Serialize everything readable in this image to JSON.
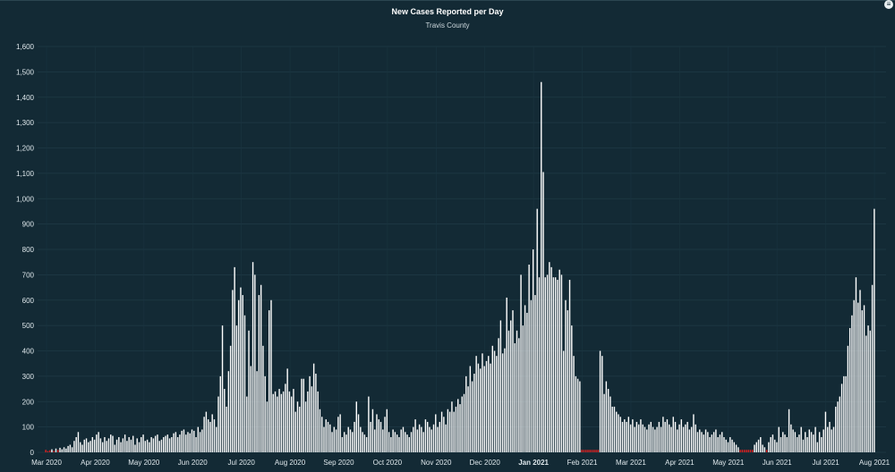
{
  "chart_data": {
    "type": "bar",
    "title": "New Cases Reported per Day",
    "subtitle": "Travis County",
    "xlabel": "",
    "ylabel": "",
    "ylim": [
      0,
      1600
    ],
    "y_ticks": [
      0,
      100,
      200,
      300,
      400,
      500,
      600,
      700,
      800,
      900,
      1000,
      1100,
      1200,
      1300,
      1400,
      1500,
      1600
    ],
    "y_tick_labels": [
      "0",
      "100",
      "200",
      "300",
      "400",
      "500",
      "600",
      "700",
      "800",
      "900",
      "1,000",
      "1,100",
      "1,200",
      "1,300",
      "1,400",
      "1,500",
      "1,600"
    ],
    "x_tick_labels": [
      "Mar 2020",
      "Apr 2020",
      "May 2020",
      "Jun 2020",
      "Jul 2020",
      "Aug 2020",
      "Sep 2020",
      "Oct 2020",
      "Nov 2020",
      "Dec 2020",
      "Jan 2021",
      "Feb 2021",
      "Mar 2021",
      "Apr 2021",
      "May 2021",
      "Jun 2021",
      "Jul 2021",
      "Aug 2021"
    ],
    "x_tick_bold": "Jan 2021",
    "grid": true,
    "bar_color": "#ffffff",
    "zero_marker_color": "#e02020",
    "background_color": "#132a35",
    "series": [
      {
        "values": [
          10,
          5,
          8,
          12,
          6,
          15,
          10,
          18,
          12,
          20,
          15,
          25,
          30,
          20,
          45,
          60,
          80,
          40,
          30,
          50,
          55,
          40,
          45,
          60,
          50,
          70,
          80,
          55,
          40,
          60,
          45,
          55,
          70,
          65,
          30,
          50,
          60,
          40,
          55,
          70,
          45,
          60,
          50,
          65,
          30,
          55,
          40,
          60,
          70,
          45,
          50,
          40,
          60,
          55,
          65,
          70,
          45,
          50,
          60,
          65,
          70,
          55,
          60,
          75,
          80,
          60,
          70,
          85,
          90,
          70,
          80,
          75,
          90,
          85,
          60,
          100,
          80,
          90,
          140,
          160,
          130,
          120,
          150,
          130,
          100,
          220,
          300,
          500,
          250,
          180,
          320,
          420,
          640,
          730,
          500,
          600,
          650,
          620,
          540,
          220,
          480,
          340,
          750,
          700,
          320,
          620,
          660,
          420,
          300,
          200,
          560,
          600,
          230,
          240,
          220,
          250,
          230,
          240,
          270,
          330,
          240,
          220,
          250,
          160,
          200,
          180,
          290,
          290,
          200,
          240,
          300,
          260,
          350,
          310,
          240,
          170,
          140,
          100,
          130,
          120,
          110,
          80,
          100,
          90,
          140,
          150,
          60,
          80,
          70,
          100,
          90,
          80,
          120,
          200,
          150,
          100,
          80,
          70,
          60,
          220,
          120,
          170,
          90,
          150,
          130,
          120,
          90,
          140,
          170,
          80,
          60,
          90,
          80,
          70,
          60,
          90,
          100,
          80,
          70,
          60,
          80,
          100,
          130,
          90,
          110,
          100,
          80,
          130,
          120,
          100,
          90,
          110,
          150,
          100,
          120,
          160,
          140,
          110,
          170,
          160,
          200,
          160,
          180,
          210,
          190,
          220,
          230,
          300,
          260,
          340,
          280,
          310,
          380,
          350,
          330,
          390,
          340,
          360,
          380,
          350,
          420,
          400,
          380,
          450,
          520,
          390,
          410,
          610,
          480,
          520,
          560,
          430,
          480,
          450,
          700,
          500,
          580,
          550,
          740,
          600,
          800,
          620,
          960,
          690,
          1460,
          1105,
          690,
          700,
          750,
          730,
          690,
          690,
          680,
          720,
          700,
          400,
          600,
          560,
          680,
          500,
          380,
          300,
          290,
          280,
          10,
          10,
          10,
          10,
          10,
          10,
          10,
          10,
          10,
          400,
          380,
          230,
          280,
          250,
          220,
          180,
          180,
          160,
          150,
          140,
          120,
          130,
          120,
          140,
          110,
          130,
          100,
          120,
          110,
          130,
          110,
          100,
          90,
          110,
          120,
          100,
          90,
          100,
          120,
          100,
          140,
          120,
          130,
          110,
          100,
          140,
          120,
          90,
          110,
          130,
          100,
          110,
          120,
          90,
          100,
          150,
          110,
          80,
          90,
          80,
          70,
          90,
          80,
          60,
          70,
          80,
          90,
          60,
          70,
          80,
          60,
          50,
          40,
          60,
          50,
          40,
          30,
          20,
          10,
          10,
          10,
          10,
          10,
          10,
          10,
          30,
          40,
          50,
          60,
          30,
          20,
          10,
          40,
          60,
          70,
          50,
          40,
          100,
          60,
          80,
          70,
          60,
          170,
          110,
          90,
          80,
          60,
          70,
          100,
          50,
          80,
          60,
          90,
          80,
          70,
          100,
          40,
          80,
          60,
          90,
          160,
          100,
          120,
          90,
          100,
          180,
          200,
          220,
          270,
          300,
          300,
          420,
          490,
          540,
          600,
          690,
          590,
          640,
          560,
          580,
          460,
          500,
          480,
          660,
          960
        ]
      }
    ]
  }
}
